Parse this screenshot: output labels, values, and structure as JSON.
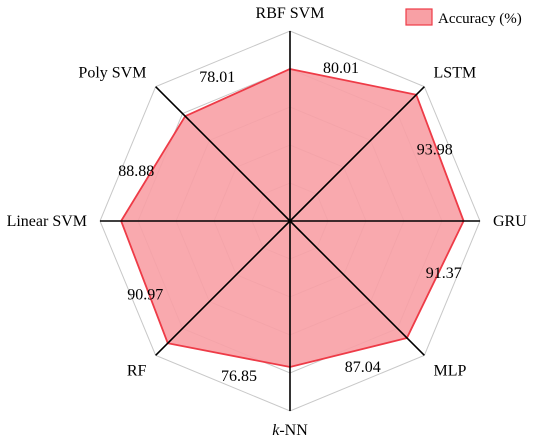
{
  "chart_data": {
    "type": "radar",
    "categories": [
      "RBF SVM",
      "LSTM",
      "GRU",
      "MLP",
      "k-NN",
      "RF",
      "Linear SVM",
      "Poly SVM"
    ],
    "category_label_parts": [
      [
        "RBF SVM"
      ],
      [
        "LSTM"
      ],
      [
        "GRU"
      ],
      [
        "MLP"
      ],
      [
        "k",
        "-NN"
      ],
      [
        "RF"
      ],
      [
        "Linear SVM"
      ],
      [
        "Poly SVM"
      ]
    ],
    "series": [
      {
        "name": "Accuracy (%)",
        "values": [
          80.01,
          93.98,
          91.37,
          87.04,
          76.85,
          90.97,
          88.88,
          78.01
        ],
        "value_labels": [
          "80.01",
          "93.98",
          "91.37",
          "87.04",
          "76.85",
          "90.97",
          "88.88",
          "78.01"
        ]
      }
    ],
    "highlight_index": 1,
    "rmax": 100,
    "grid_rings": 5,
    "legend_position": "top-right",
    "colors": {
      "fill": "#f8a0a5",
      "stroke": "#ee3b47",
      "highlight_text": "#ee3b47",
      "grid": "#c8c8c8",
      "axis": "#000000"
    }
  }
}
